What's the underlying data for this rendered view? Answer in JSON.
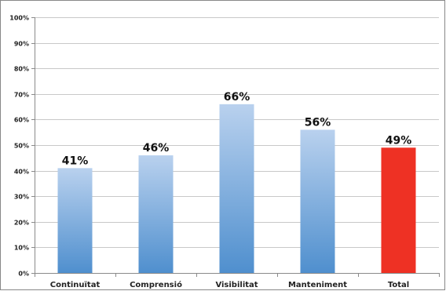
{
  "chart_data": {
    "type": "bar",
    "title": "",
    "xlabel": "",
    "ylabel": "",
    "categories": [
      "Continuïtat",
      "Comprensió",
      "Visibilitat",
      "Manteniment",
      "Total"
    ],
    "values": [
      41,
      46,
      66,
      56,
      49
    ],
    "value_labels": [
      "41%",
      "46%",
      "66%",
      "56%",
      "49%"
    ],
    "ylim": [
      0,
      100
    ],
    "y_ticks": [
      0,
      10,
      20,
      30,
      40,
      50,
      60,
      70,
      80,
      90,
      100
    ],
    "y_tick_labels": [
      "0%",
      "10%",
      "20%",
      "30%",
      "40%",
      "50%",
      "60%",
      "70%",
      "80%",
      "90%",
      "100%"
    ],
    "grid": true,
    "legend": "none",
    "colors": {
      "bar_gradient_top": "#b9d1ee",
      "bar_gradient_bottom": "#4f8fce",
      "highlight_bar": "#ee3124",
      "gridline": "#c8c8c8",
      "axis": "#8a8a8a"
    },
    "highlight_category": "Total"
  }
}
